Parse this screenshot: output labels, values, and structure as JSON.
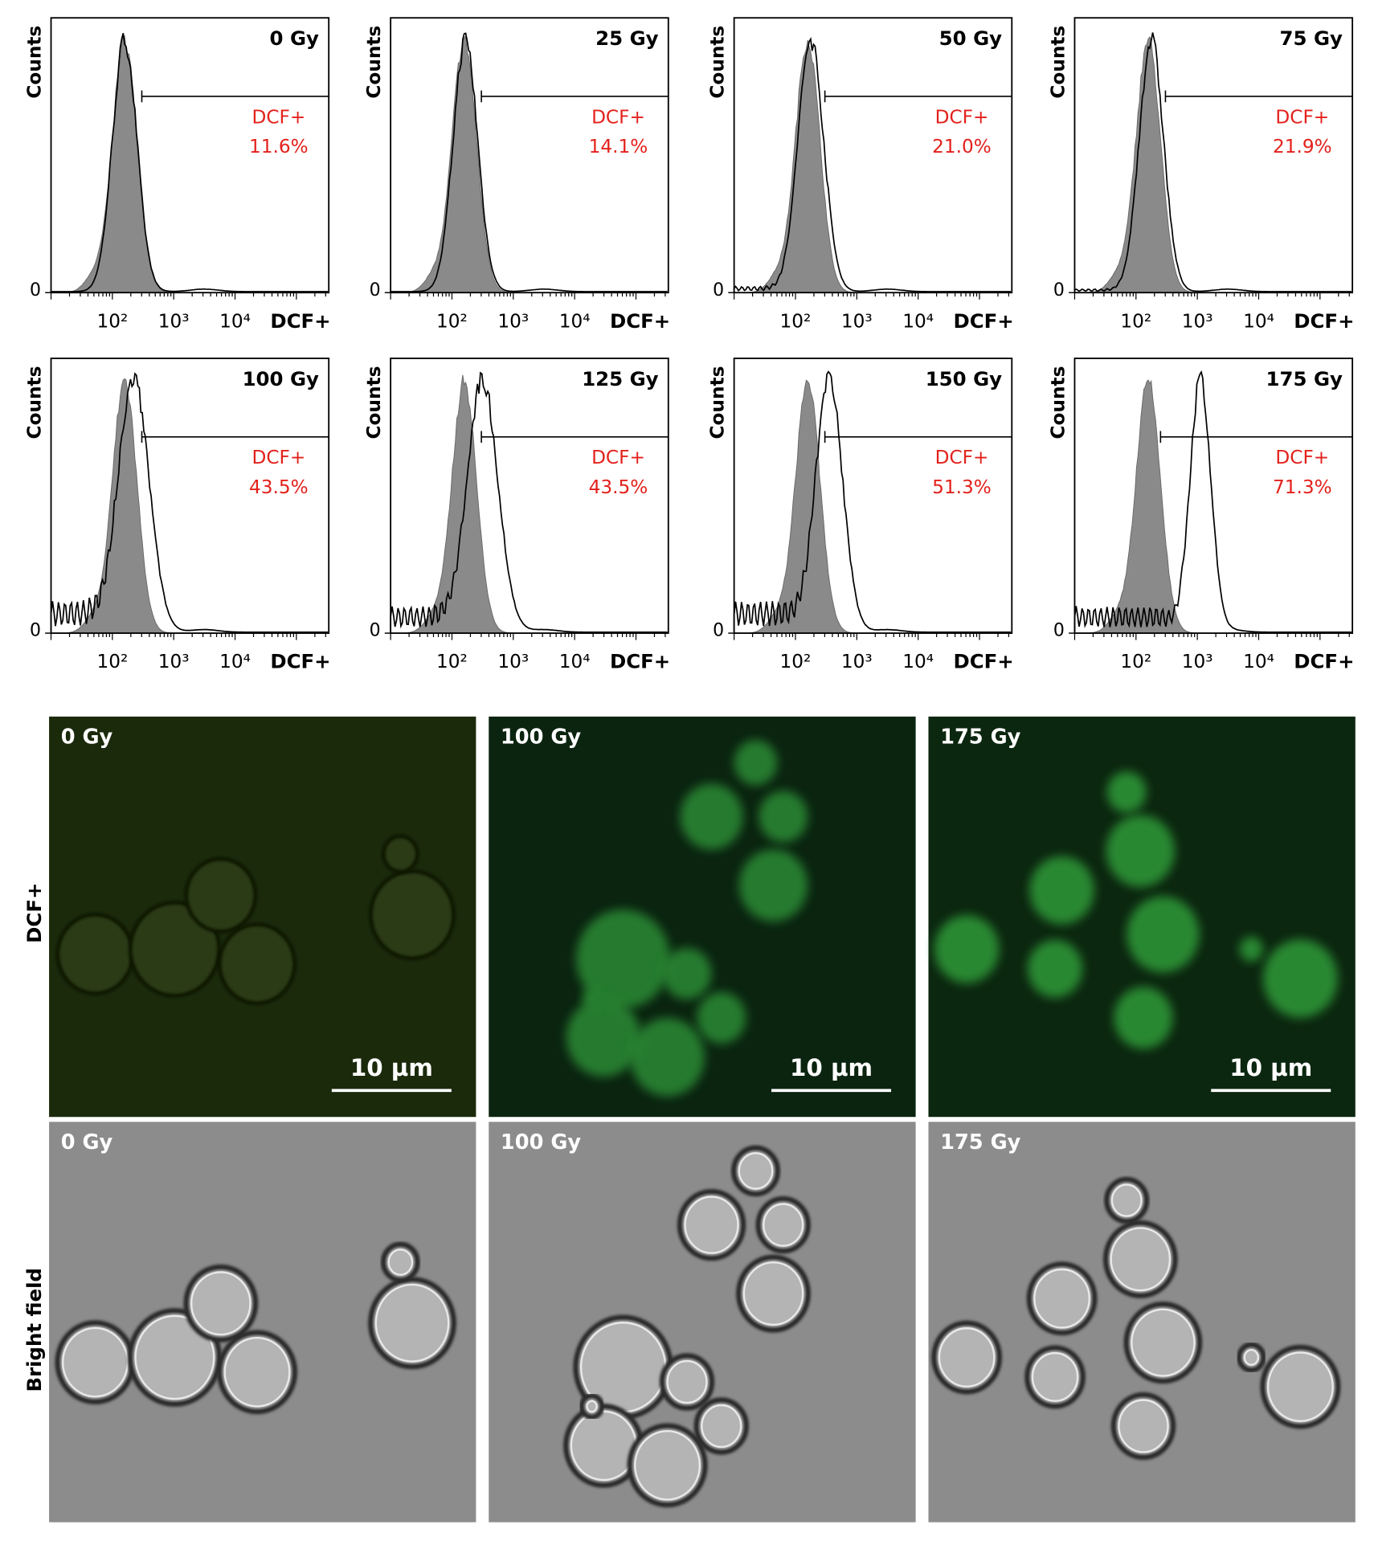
{
  "histogram_axes": {
    "y_label": "Counts",
    "y_zero": "0",
    "x_ticks": [
      "10²",
      "10³",
      "10⁴"
    ],
    "x_label": "DCF+"
  },
  "histograms": [
    {
      "dose": "0 Gy",
      "gate_label": "DCF+",
      "percent": "11.6%"
    },
    {
      "dose": "25 Gy",
      "gate_label": "DCF+",
      "percent": "14.1%"
    },
    {
      "dose": "50 Gy",
      "gate_label": "DCF+",
      "percent": "21.0%"
    },
    {
      "dose": "75 Gy",
      "gate_label": "DCF+",
      "percent": "21.9%"
    },
    {
      "dose": "100 Gy",
      "gate_label": "DCF+",
      "percent": "43.5%"
    },
    {
      "dose": "125 Gy",
      "gate_label": "DCF+",
      "percent": "43.5%"
    },
    {
      "dose": "150 Gy",
      "gate_label": "DCF+",
      "percent": "51.3%"
    },
    {
      "dose": "175 Gy",
      "gate_label": "DCF+",
      "percent": "71.3%"
    }
  ],
  "micrographs": {
    "row_labels": [
      "DCF+",
      "Bright field"
    ],
    "doses": [
      "0 Gy",
      "100 Gy",
      "175 Gy"
    ],
    "scale_bar": "10 µm"
  }
}
